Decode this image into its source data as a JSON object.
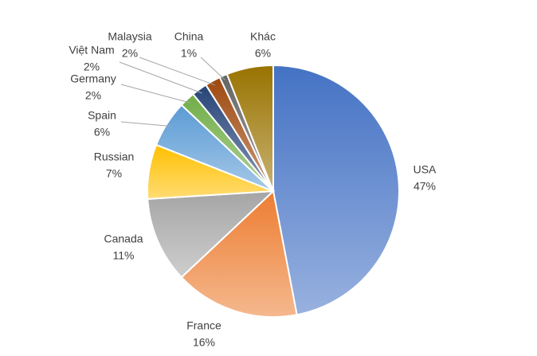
{
  "chart_data": {
    "type": "pie",
    "categories": [
      "USA",
      "France",
      "Canada",
      "Russian",
      "Spain",
      "Germany",
      "Việt Nam",
      "Malaysia",
      "China",
      "Khác"
    ],
    "values": [
      47,
      16,
      11,
      7,
      6,
      2,
      2,
      2,
      1,
      6
    ],
    "value_labels": [
      "47%",
      "16%",
      "11%",
      "7%",
      "6%",
      "2%",
      "2%",
      "2%",
      "1%",
      "6%"
    ],
    "colors": [
      "#4472c4",
      "#ed7d31",
      "#a5a5a5",
      "#ffc000",
      "#5b9bd5",
      "#70ad47",
      "#264478",
      "#9e480e",
      "#636363",
      "#997300"
    ]
  }
}
